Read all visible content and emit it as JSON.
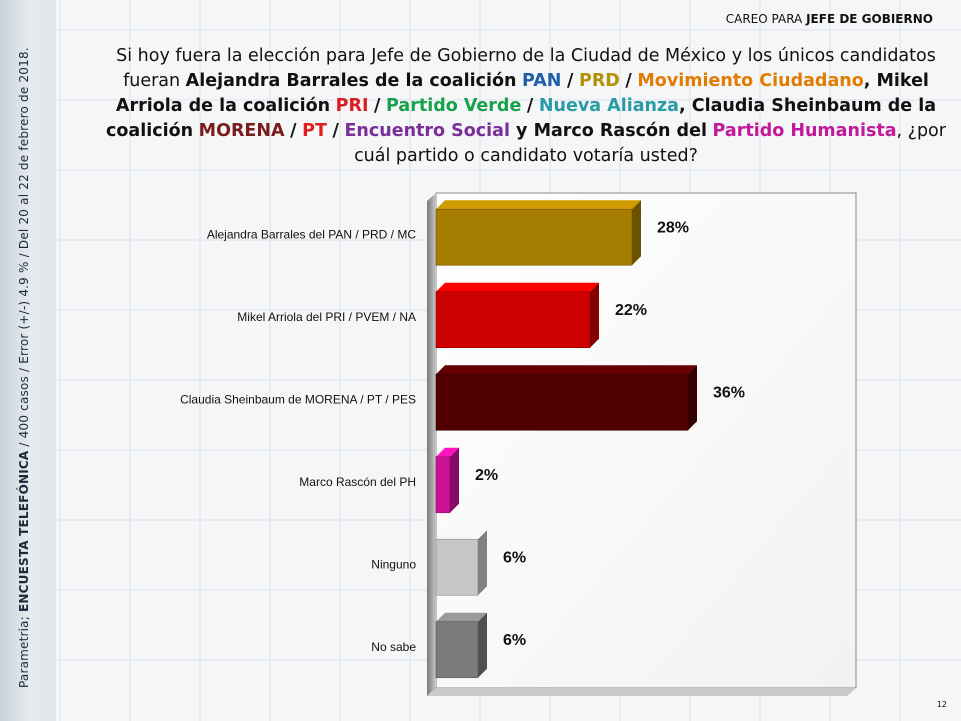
{
  "header": {
    "prefix": "CAREO PARA ",
    "strong": "JEFE DE GOBIERNO"
  },
  "sidebar": {
    "prefix": "Parametria; ",
    "strong": "ENCUESTA TELEFÓNICA",
    "suffix": " / 400 casos / Error (+/-) 4.9 % / Del 20 al 22 de febrero de 2018."
  },
  "question": {
    "t1": "Si hoy fuera la elección para Jefe de Gobierno de la Ciudad de México y los únicos candidatos fueran ",
    "c1": "Alejandra Barrales de la coalición",
    "pan": "PAN",
    "sep": "/",
    "prd": "PRD",
    "mc": "Movimiento Ciudadano",
    "comma": ", ",
    "c2": "Mikel Arriola de la coalición",
    "pri": "PRI",
    "pv": "Partido Verde",
    "na": "Nueva Alianza",
    "c3": "Claudia Sheinbaum de la coalición",
    "morena": "MORENA",
    "pt": "PT",
    "es": "Encuentro Social",
    "and": " y ",
    "c4": "Marco Rascón del",
    "ph": "Partido Humanista",
    "t2": ", ¿por cuál partido o candidato votaría usted?"
  },
  "colors": {
    "pan": "#1f5fa8",
    "prd": "#b39200",
    "mc": "#e37b00",
    "pri": "#d81e1e",
    "pv": "#18a04a",
    "na": "#2a9aa5",
    "morena": "#7a1c1c",
    "pt": "#e02020",
    "es": "#7b2d9a",
    "ph": "#c2189b"
  },
  "chart_data": {
    "type": "bar",
    "orientation": "horizontal",
    "categories": [
      "Alejandra Barrales del PAN / PRD / MC",
      "Mikel Arriola del PRI / PVEM / NA",
      "Claudia Sheinbaum de MORENA / PT / PES",
      "Marco Rascón del PH",
      "Ninguno",
      "No sabe"
    ],
    "values": [
      28,
      22,
      36,
      2,
      6,
      6
    ],
    "value_labels": [
      "28%",
      "22%",
      "36%",
      "2%",
      "6%",
      "6%"
    ],
    "colors": [
      "#a57d00",
      "#cc0000",
      "#500000",
      "#cc1199",
      "#c6c6c6",
      "#7b7b7b"
    ],
    "xlim": [
      0,
      60
    ],
    "grid": false,
    "legend": "none"
  },
  "page_number": "12"
}
